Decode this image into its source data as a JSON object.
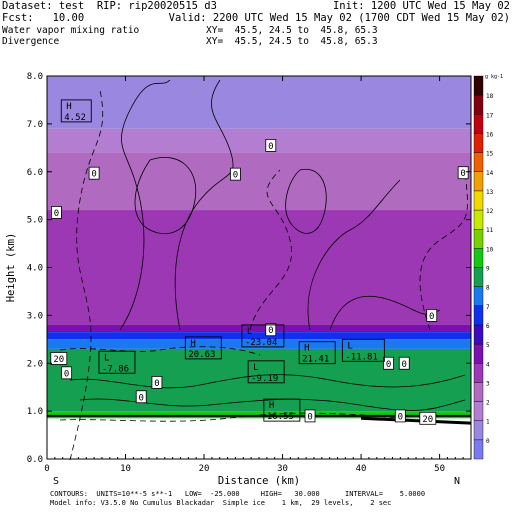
{
  "header": {
    "line1_left": "Dataset: test  RIP: rip20020515 d3",
    "line1_right": "Init: 1200 UTC Wed 15 May 02",
    "line2_left": "Fcst:   10.00",
    "line2_right": "Valid: 2200 UTC Wed 15 May 02 (1700 CDT Wed 15 May 02)",
    "line3_left": "Water vapor mixing ratio",
    "line3_right": "XY=  45.5, 24.5 to  45.8, 65.3",
    "line4_left": "Divergence",
    "line4_right": "XY=  45.5, 24.5 to  45.8, 65.3"
  },
  "footer": {
    "line1": "CONTOURS:  UNITS=10**-5 s**-1   LOW=  -25.000     HIGH=   30.000      INTERVAL=    5.0000",
    "line2": "Model info: V3.5.0 No Cumulus Blackadar  Simple ice    1 km,  29 levels,    2 sec"
  },
  "chart_data": {
    "type": "heatmap",
    "title": "Water vapor mixing ratio",
    "xlabel": "Distance (km)",
    "ylabel": "Height (km)",
    "xlim": [
      0,
      54
    ],
    "ylim": [
      0,
      8
    ],
    "x_ticks": [
      0,
      10,
      20,
      30,
      40,
      50
    ],
    "y_ticks": [
      "0.0",
      "1.0",
      "2.0",
      "3.0",
      "4.0",
      "5.0",
      "6.0",
      "7.0",
      "8.0"
    ],
    "left_end_label": "S",
    "right_end_label": "N",
    "colorbar": {
      "unit_label": "g kg-1",
      "levels": [
        0,
        1,
        2,
        3,
        4,
        5,
        6,
        7,
        8,
        9,
        10,
        11,
        12,
        13,
        14,
        15,
        16,
        17,
        18
      ],
      "colors": [
        "#7a7af0",
        "#9a88e0",
        "#b37ed2",
        "#b06ac0",
        "#9c38b4",
        "#7a10b0",
        "#3a0cc0",
        "#1030f0",
        "#1a78f0",
        "#14a050",
        "#14c814",
        "#78d000",
        "#c8e800",
        "#f0d800",
        "#f0a000",
        "#f06000",
        "#e02000",
        "#c00010",
        "#800010",
        "#300000"
      ]
    },
    "moisture_layers": [
      {
        "from_km": 6.9,
        "to_km": 8.0,
        "value": 0.5
      },
      {
        "from_km": 6.4,
        "to_km": 6.9,
        "value": 1.5
      },
      {
        "from_km": 5.2,
        "to_km": 6.4,
        "value": 2.5
      },
      {
        "from_km": 2.8,
        "to_km": 5.2,
        "value": 3.5
      },
      {
        "from_km": 2.65,
        "to_km": 2.8,
        "value": 4.5
      },
      {
        "from_km": 2.5,
        "to_km": 2.65,
        "value": 6.5
      },
      {
        "from_km": 2.3,
        "to_km": 2.5,
        "value": 7.5
      },
      {
        "from_km": 1.0,
        "to_km": 2.3,
        "value": 8.5
      },
      {
        "from_km": 0.85,
        "to_km": 1.0,
        "value": 9.5
      }
    ],
    "annotations": [
      {
        "text": "H",
        "value": "4.52",
        "x": 2.2,
        "y": 7.25
      },
      {
        "text": "L",
        "value": "-23.04",
        "x": 25.2,
        "y": 2.55
      },
      {
        "text": "H",
        "value": "20.63",
        "x": 18.0,
        "y": 2.3
      },
      {
        "text": "H",
        "value": "21.41",
        "x": 32.5,
        "y": 2.2
      },
      {
        "text": "L",
        "value": "-11.81",
        "x": 38.0,
        "y": 2.25
      },
      {
        "text": "L",
        "value": "-7.86",
        "x": 7.0,
        "y": 2.0
      },
      {
        "text": "L",
        "value": "-9.19",
        "x": 26.0,
        "y": 1.8
      },
      {
        "text": "H",
        "value": "16.55",
        "x": 28.0,
        "y": 1.0
      }
    ],
    "contour_labels": [
      {
        "value": "0",
        "x": 6.0,
        "y": 5.97
      },
      {
        "value": "0",
        "x": 28.5,
        "y": 6.55
      },
      {
        "value": "0",
        "x": 24.0,
        "y": 5.95
      },
      {
        "value": "0",
        "x": 53.0,
        "y": 5.98
      },
      {
        "value": "0",
        "x": 1.2,
        "y": 5.15
      },
      {
        "value": "0",
        "x": 49.0,
        "y": 3.0
      },
      {
        "value": "0",
        "x": 28.5,
        "y": 2.7
      },
      {
        "value": "20",
        "x": 1.5,
        "y": 2.1
      },
      {
        "value": "0",
        "x": 2.5,
        "y": 1.8
      },
      {
        "value": "0",
        "x": 14.0,
        "y": 1.6
      },
      {
        "value": "0",
        "x": 12.0,
        "y": 1.3
      },
      {
        "value": "0",
        "x": 43.5,
        "y": 2.0
      },
      {
        "value": "0",
        "x": 45.5,
        "y": 2.0
      },
      {
        "value": "0",
        "x": 33.5,
        "y": 0.9
      },
      {
        "value": "0",
        "x": 45.0,
        "y": 0.9
      },
      {
        "value": "20",
        "x": 48.5,
        "y": 0.85
      }
    ]
  }
}
